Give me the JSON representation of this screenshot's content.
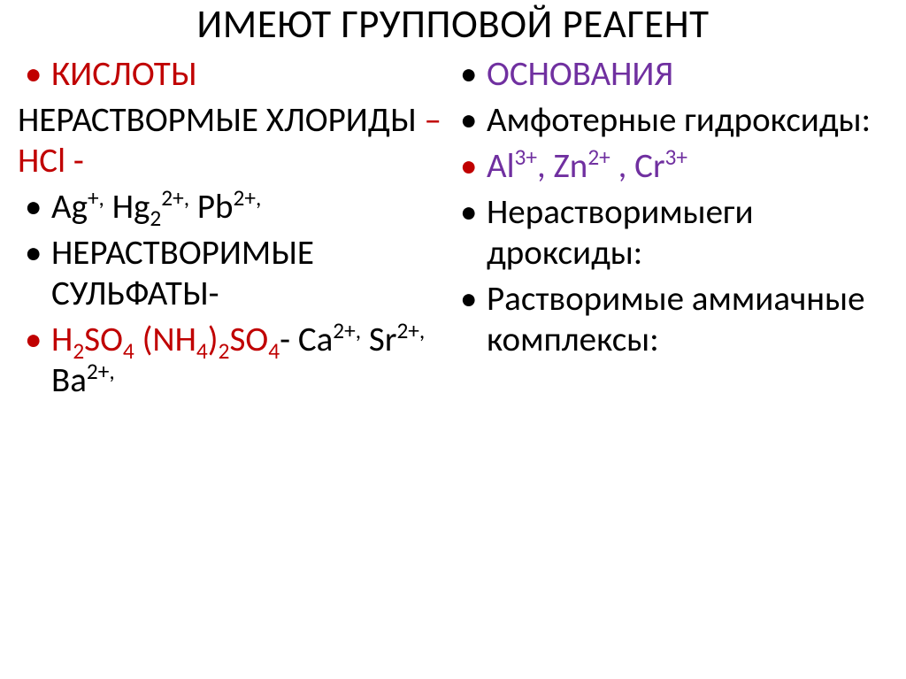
{
  "title": "ИМЕЮТ ГРУППОВОЙ РЕАГЕНТ",
  "colors": {
    "title": "#000000",
    "red": "#c00000",
    "black": "#000000",
    "purple": "#7030a0",
    "background": "#ffffff"
  },
  "fontsize": {
    "title": 45,
    "body": 39
  },
  "left": {
    "heading": "КИСЛОТЫ",
    "line2a": "НЕРАСТВОРМЫЕ ХЛОРИДЫ",
    "line2b": " – HCl -",
    "line3": "Ag⁺', Hg₂²⁺', Pb²⁺'",
    "line4": "НЕРАСТВОРИМЫЕ СУЛЬФАТЫ-",
    "line5a": "H₂SO₄ (NH₄)₂SO₄",
    "line5b": "- Ca²⁺' Sr²⁺' Ba²⁺'"
  },
  "right": {
    "heading": "ОСНОВАНИЯ",
    "line2": "Амфотерные гидроксиды:",
    "line3": "Al³⁺, Zn²⁺ , Cr³⁺",
    "line4": "Нерастворимыеги дроксиды:",
    "line5": "Растворимые аммиачные комплексы:"
  }
}
